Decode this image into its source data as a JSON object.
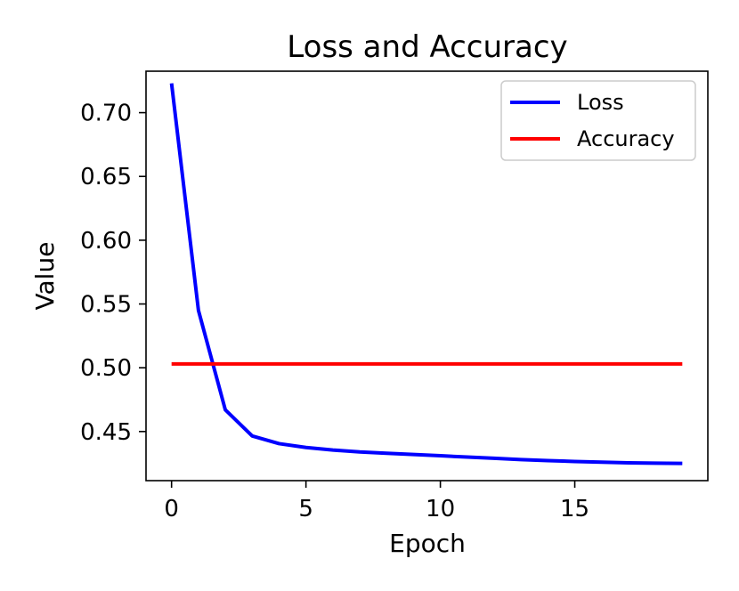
{
  "chart_data": {
    "type": "line",
    "title": "Loss and Accuracy",
    "xlabel": "Epoch",
    "ylabel": "Value",
    "xlim": [
      -0.95,
      19.95
    ],
    "ylim": [
      0.4115,
      0.7325
    ],
    "xticks": [
      0,
      5,
      10,
      15
    ],
    "yticks": [
      0.45,
      0.5,
      0.55,
      0.6,
      0.65,
      0.7
    ],
    "x": [
      0,
      1,
      2,
      3,
      4,
      5,
      6,
      7,
      8,
      9,
      10,
      11,
      12,
      13,
      14,
      15,
      16,
      17,
      18,
      19
    ],
    "grid": false,
    "legend_position": "top-right",
    "series": [
      {
        "name": "Loss",
        "color": "#0000ff",
        "values": [
          0.723,
          0.545,
          0.467,
          0.4465,
          0.4405,
          0.4375,
          0.4355,
          0.434,
          0.433,
          0.432,
          0.431,
          0.43,
          0.429,
          0.428,
          0.4272,
          0.4265,
          0.426,
          0.4255,
          0.4252,
          0.425
        ]
      },
      {
        "name": "Accuracy",
        "color": "#ff0000",
        "values": [
          0.503,
          0.503,
          0.503,
          0.503,
          0.503,
          0.503,
          0.503,
          0.503,
          0.503,
          0.503,
          0.503,
          0.503,
          0.503,
          0.503,
          0.503,
          0.503,
          0.503,
          0.503,
          0.503,
          0.503
        ]
      }
    ]
  }
}
